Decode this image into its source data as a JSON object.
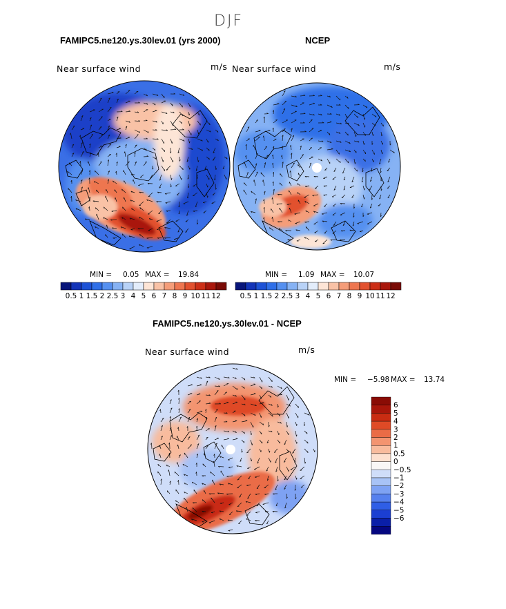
{
  "figure": {
    "season": "DJF",
    "panel_left_title": "FAMIPC5.ne120.ys.30lev.01 (yrs 2000)",
    "panel_right_title": "NCEP",
    "diff_title": "FAMIPC5.ne120.ys.30lev.01 - NCEP",
    "field_label": "Near surface wind",
    "units": "m/s"
  },
  "colors": {
    "seq_scale": [
      "#08157a",
      "#1334b8",
      "#1d52d6",
      "#2f6fe8",
      "#5590f0",
      "#86b2f4",
      "#b8d2f7",
      "#e3edfb",
      "#fde5d6",
      "#f9c2a6",
      "#f59d79",
      "#ee7650",
      "#e2512f",
      "#cc2f17",
      "#a9170c",
      "#7a0b06"
    ],
    "div_scale": [
      "#050780",
      "#0a1fa8",
      "#1b3fd2",
      "#2f5ee6",
      "#5580ee",
      "#7ea2f3",
      "#a8c3f6",
      "#cfddf9",
      "#f9f7f6",
      "#fde0cf",
      "#f8bb9d",
      "#f39470",
      "#ea6c46",
      "#df4a26",
      "#c92c12",
      "#a8160a",
      "#8a0c05"
    ]
  },
  "chart_data": [
    {
      "type": "heatmap",
      "projection": "north-polar-stereographic",
      "title": "FAMIPC5.ne120.ys.30lev.01 (yrs 2000)",
      "field": "Near surface wind",
      "units": "m/s",
      "min_label": "MIN =",
      "min": "0.05",
      "max_label": "MAX =",
      "max": "19.84",
      "colorbar_ticks": [
        "0.5",
        "1",
        "1.5",
        "2",
        "2.5",
        "3",
        "4",
        "5",
        "6",
        "7",
        "8",
        "9",
        "10",
        "11",
        "12"
      ]
    },
    {
      "type": "heatmap",
      "projection": "north-polar-stereographic",
      "title": "NCEP",
      "field": "Near surface wind",
      "units": "m/s",
      "min_label": "MIN =",
      "min": "1.09",
      "max_label": "MAX =",
      "max": "10.07",
      "colorbar_ticks": [
        "0.5",
        "1",
        "1.5",
        "2",
        "2.5",
        "3",
        "4",
        "5",
        "6",
        "7",
        "8",
        "9",
        "10",
        "11",
        "12"
      ]
    },
    {
      "type": "heatmap",
      "projection": "north-polar-stereographic",
      "title": "FAMIPC5.ne120.ys.30lev.01 - NCEP",
      "field": "Near surface wind",
      "units": "m/s",
      "min_label": "MIN =",
      "min": "−5.98",
      "max_label": "MAX =",
      "max": "13.74",
      "colorbar_ticks": [
        "6",
        "5",
        "4",
        "3",
        "2",
        "1",
        "0.5",
        "0",
        "−0.5",
        "−1",
        "−2",
        "−3",
        "−4",
        "−5",
        "−6"
      ]
    }
  ]
}
